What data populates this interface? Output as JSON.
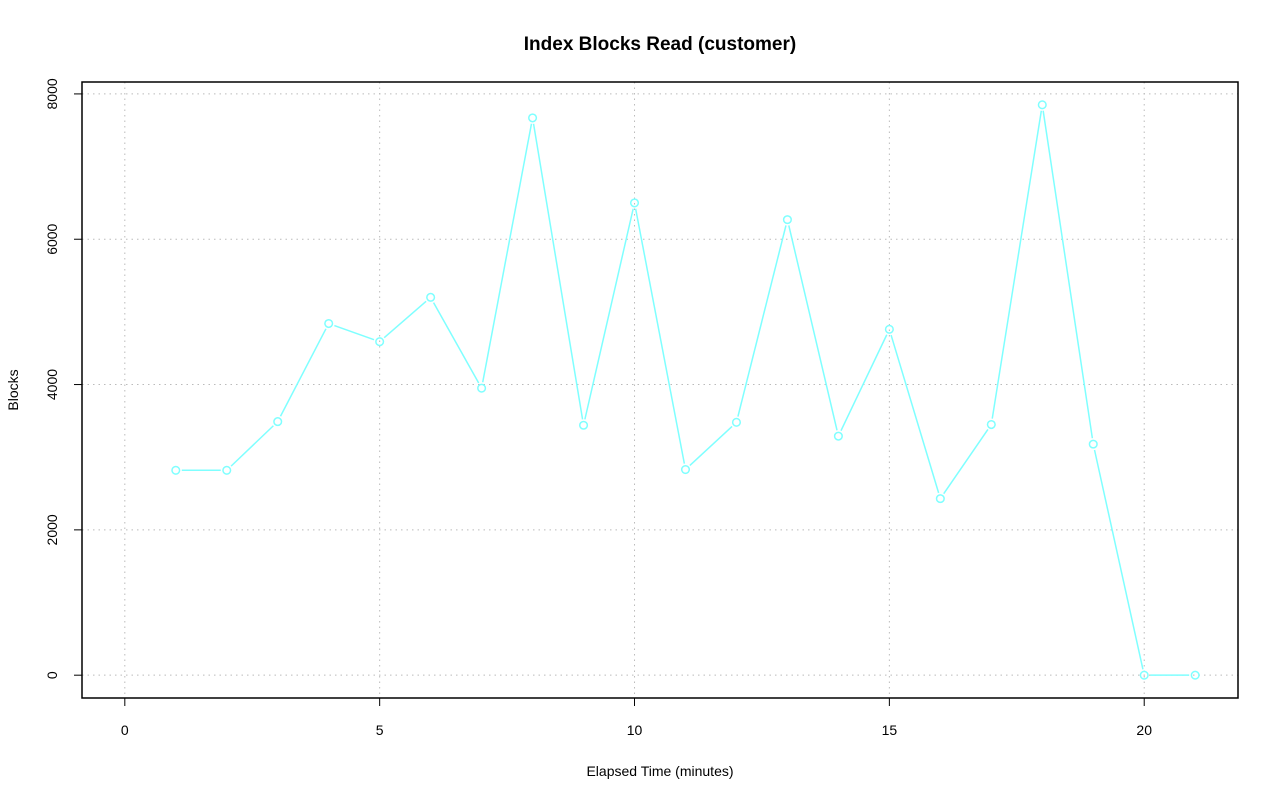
{
  "chart_data": {
    "type": "line",
    "title": "Index Blocks Read (customer)",
    "xlabel": "Elapsed Time (minutes)",
    "ylabel": "Blocks",
    "xlim": [
      0,
      21
    ],
    "ylim": [
      0,
      7850
    ],
    "x_ticks": [
      0,
      5,
      10,
      15,
      20
    ],
    "y_ticks": [
      0,
      2000,
      4000,
      6000,
      8000
    ],
    "x_tick_labels": [
      "0",
      "5",
      "10",
      "15",
      "20"
    ],
    "y_tick_labels": [
      "0",
      "2000",
      "4000",
      "6000",
      "8000"
    ],
    "grid": true,
    "series": [
      {
        "color": "#7fffff",
        "marker": "open-circle",
        "x": [
          1,
          2,
          3,
          4,
          5,
          6,
          7,
          8,
          9,
          10,
          11,
          12,
          13,
          14,
          15,
          16,
          17,
          18,
          19,
          20,
          21
        ],
        "values": [
          2820,
          2820,
          3490,
          4840,
          4590,
          5200,
          3950,
          7670,
          3440,
          6500,
          2830,
          3480,
          6270,
          3290,
          4760,
          2430,
          3450,
          7850,
          3180,
          0,
          0
        ]
      }
    ]
  }
}
